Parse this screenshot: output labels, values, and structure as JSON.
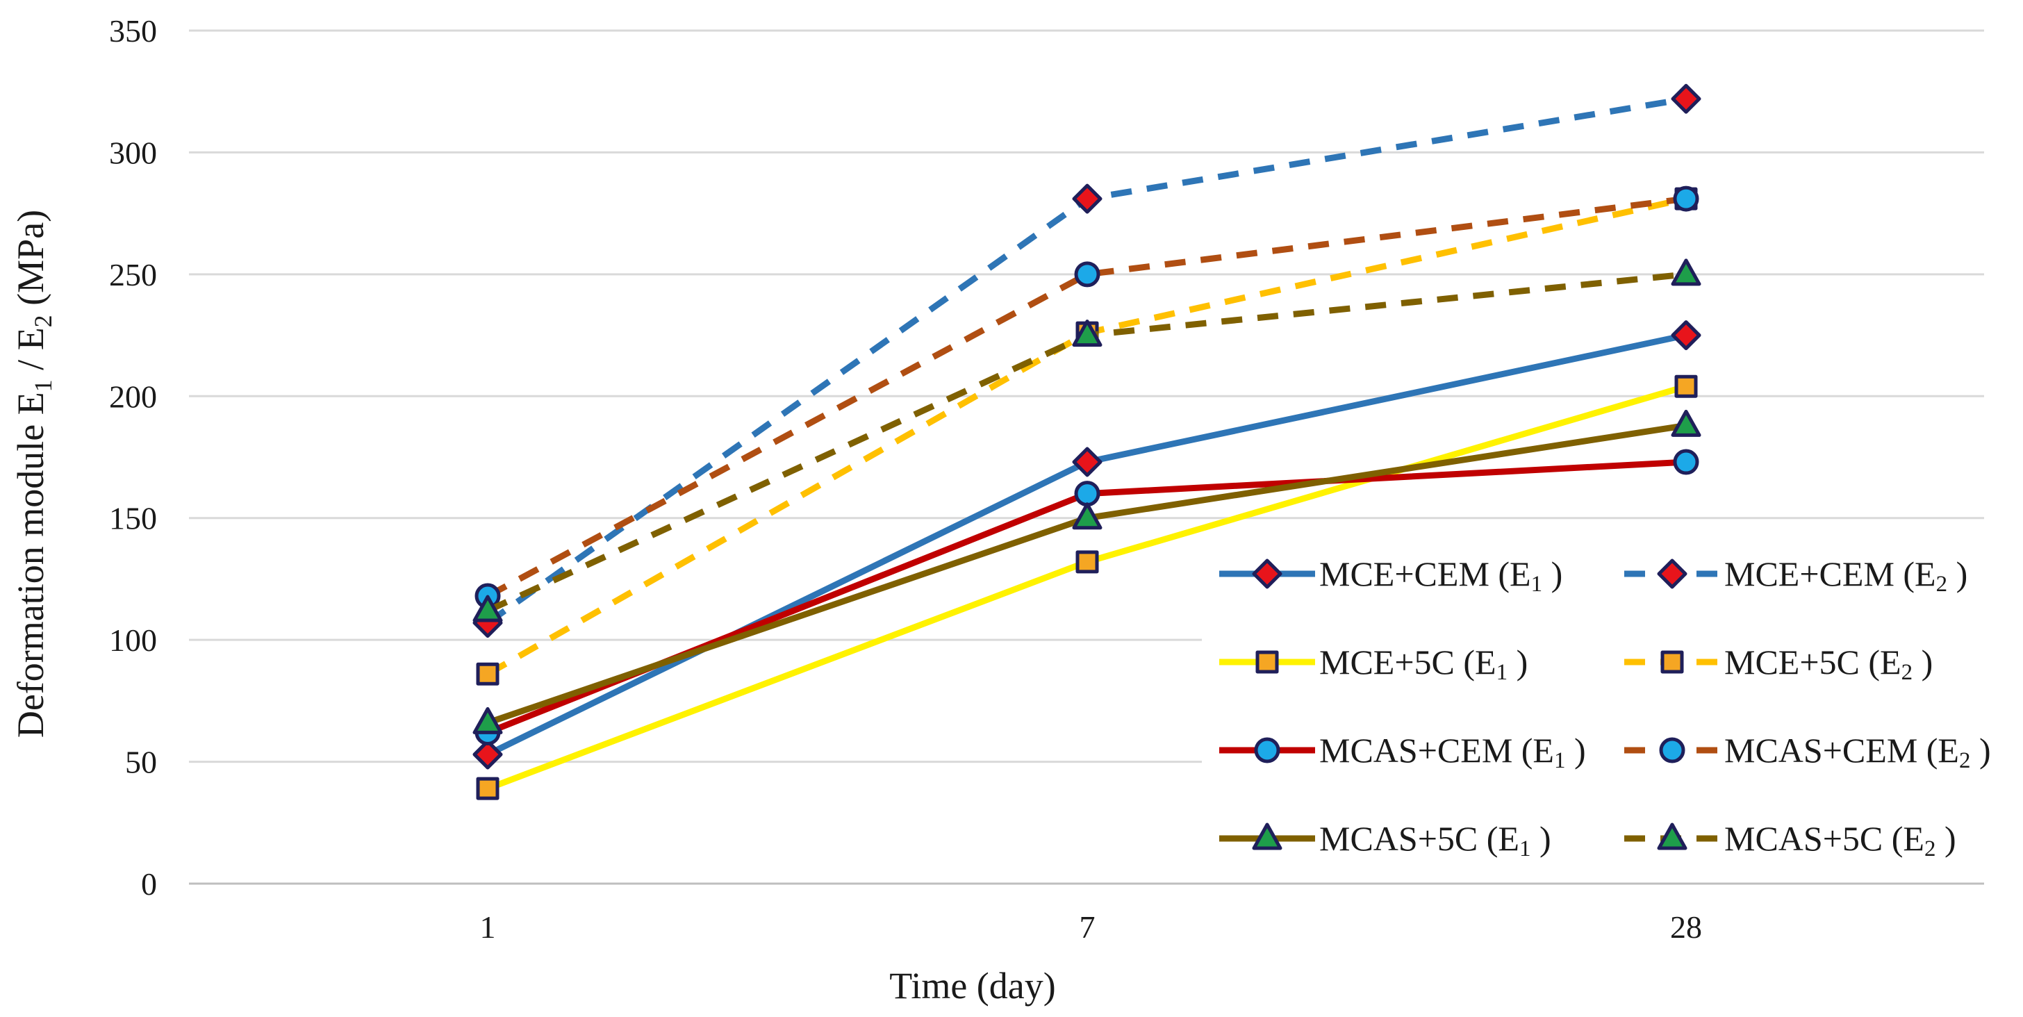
{
  "chart_data": {
    "type": "line",
    "title": "",
    "xlabel": "Time (day)",
    "ylabel": {
      "base": "Deformation module E",
      "sub1": "1",
      "sep": " / E",
      "sub2": "2",
      "unit": " (MPa)"
    },
    "categories": [
      "1",
      "7",
      "28"
    ],
    "ylim": [
      0,
      350
    ],
    "yticks": [
      0,
      50,
      100,
      150,
      200,
      250,
      300,
      350
    ],
    "ytick_labels": [
      "0",
      "50",
      "100",
      "150",
      "200",
      "250",
      "300",
      "350"
    ],
    "grid": true,
    "legend_position": "bottom-right, inside plot",
    "series": [
      {
        "name": "MCE+CEM (E1 )",
        "label_main": "MCE+CEM (E",
        "label_sub": "1",
        "label_end": " )",
        "values": [
          53,
          173,
          225
        ],
        "line_color": "#2E75B6",
        "dash": false,
        "marker": "diamond",
        "marker_fill": "#E8141B"
      },
      {
        "name": "MCE+CEM (E2 )",
        "label_main": "MCE+CEM (E",
        "label_sub": "2",
        "label_end": " )",
        "values": [
          107,
          281,
          322
        ],
        "line_color": "#2E75B6",
        "dash": true,
        "marker": "diamond",
        "marker_fill": "#E8141B"
      },
      {
        "name": "MCE+5C (E1 )",
        "label_main": "MCE+5C (E",
        "label_sub": "1",
        "label_end": " )",
        "values": [
          39,
          132,
          204
        ],
        "line_color": "#FFF200",
        "dash": false,
        "marker": "square",
        "marker_fill": "#F5A623"
      },
      {
        "name": "MCE+5C (E2 )",
        "label_main": "MCE+5C (E",
        "label_sub": "2",
        "label_end": " )",
        "values": [
          86,
          226,
          281
        ],
        "line_color": "#FFC000",
        "dash": true,
        "marker": "square",
        "marker_fill": "#F5A623"
      },
      {
        "name": "MCAS+CEM (E1 )",
        "label_main": "MCAS+CEM (E",
        "label_sub": "1",
        "label_end": " )",
        "values": [
          62,
          160,
          173
        ],
        "line_color": "#C00000",
        "dash": false,
        "marker": "circle",
        "marker_fill": "#1CA9E8"
      },
      {
        "name": "MCAS+CEM (E2 )",
        "label_main": "MCAS+CEM (E",
        "label_sub": "2",
        "label_end": " )",
        "values": [
          118,
          250,
          281
        ],
        "line_color": "#B04E12",
        "dash": true,
        "marker": "circle",
        "marker_fill": "#1CA9E8"
      },
      {
        "name": "MCAS+5C (E1 )",
        "label_main": "MCAS+5C (E",
        "label_sub": "1",
        "label_end": " )",
        "values": [
          66,
          150,
          188
        ],
        "line_color": "#7F6000",
        "dash": false,
        "marker": "triangle",
        "marker_fill": "#1E9E4A"
      },
      {
        "name": "MCAS+5C (E2 )",
        "label_main": "MCAS+5C (E",
        "label_sub": "2",
        "label_end": " )",
        "values": [
          112,
          225,
          250
        ],
        "line_color": "#7F6000",
        "dash": true,
        "marker": "triangle",
        "marker_fill": "#1E9E4A"
      }
    ],
    "colors": {
      "grid": "#D9D9D9",
      "axis": "#BFBFBF",
      "marker_stroke": "#1F1F5A"
    }
  }
}
